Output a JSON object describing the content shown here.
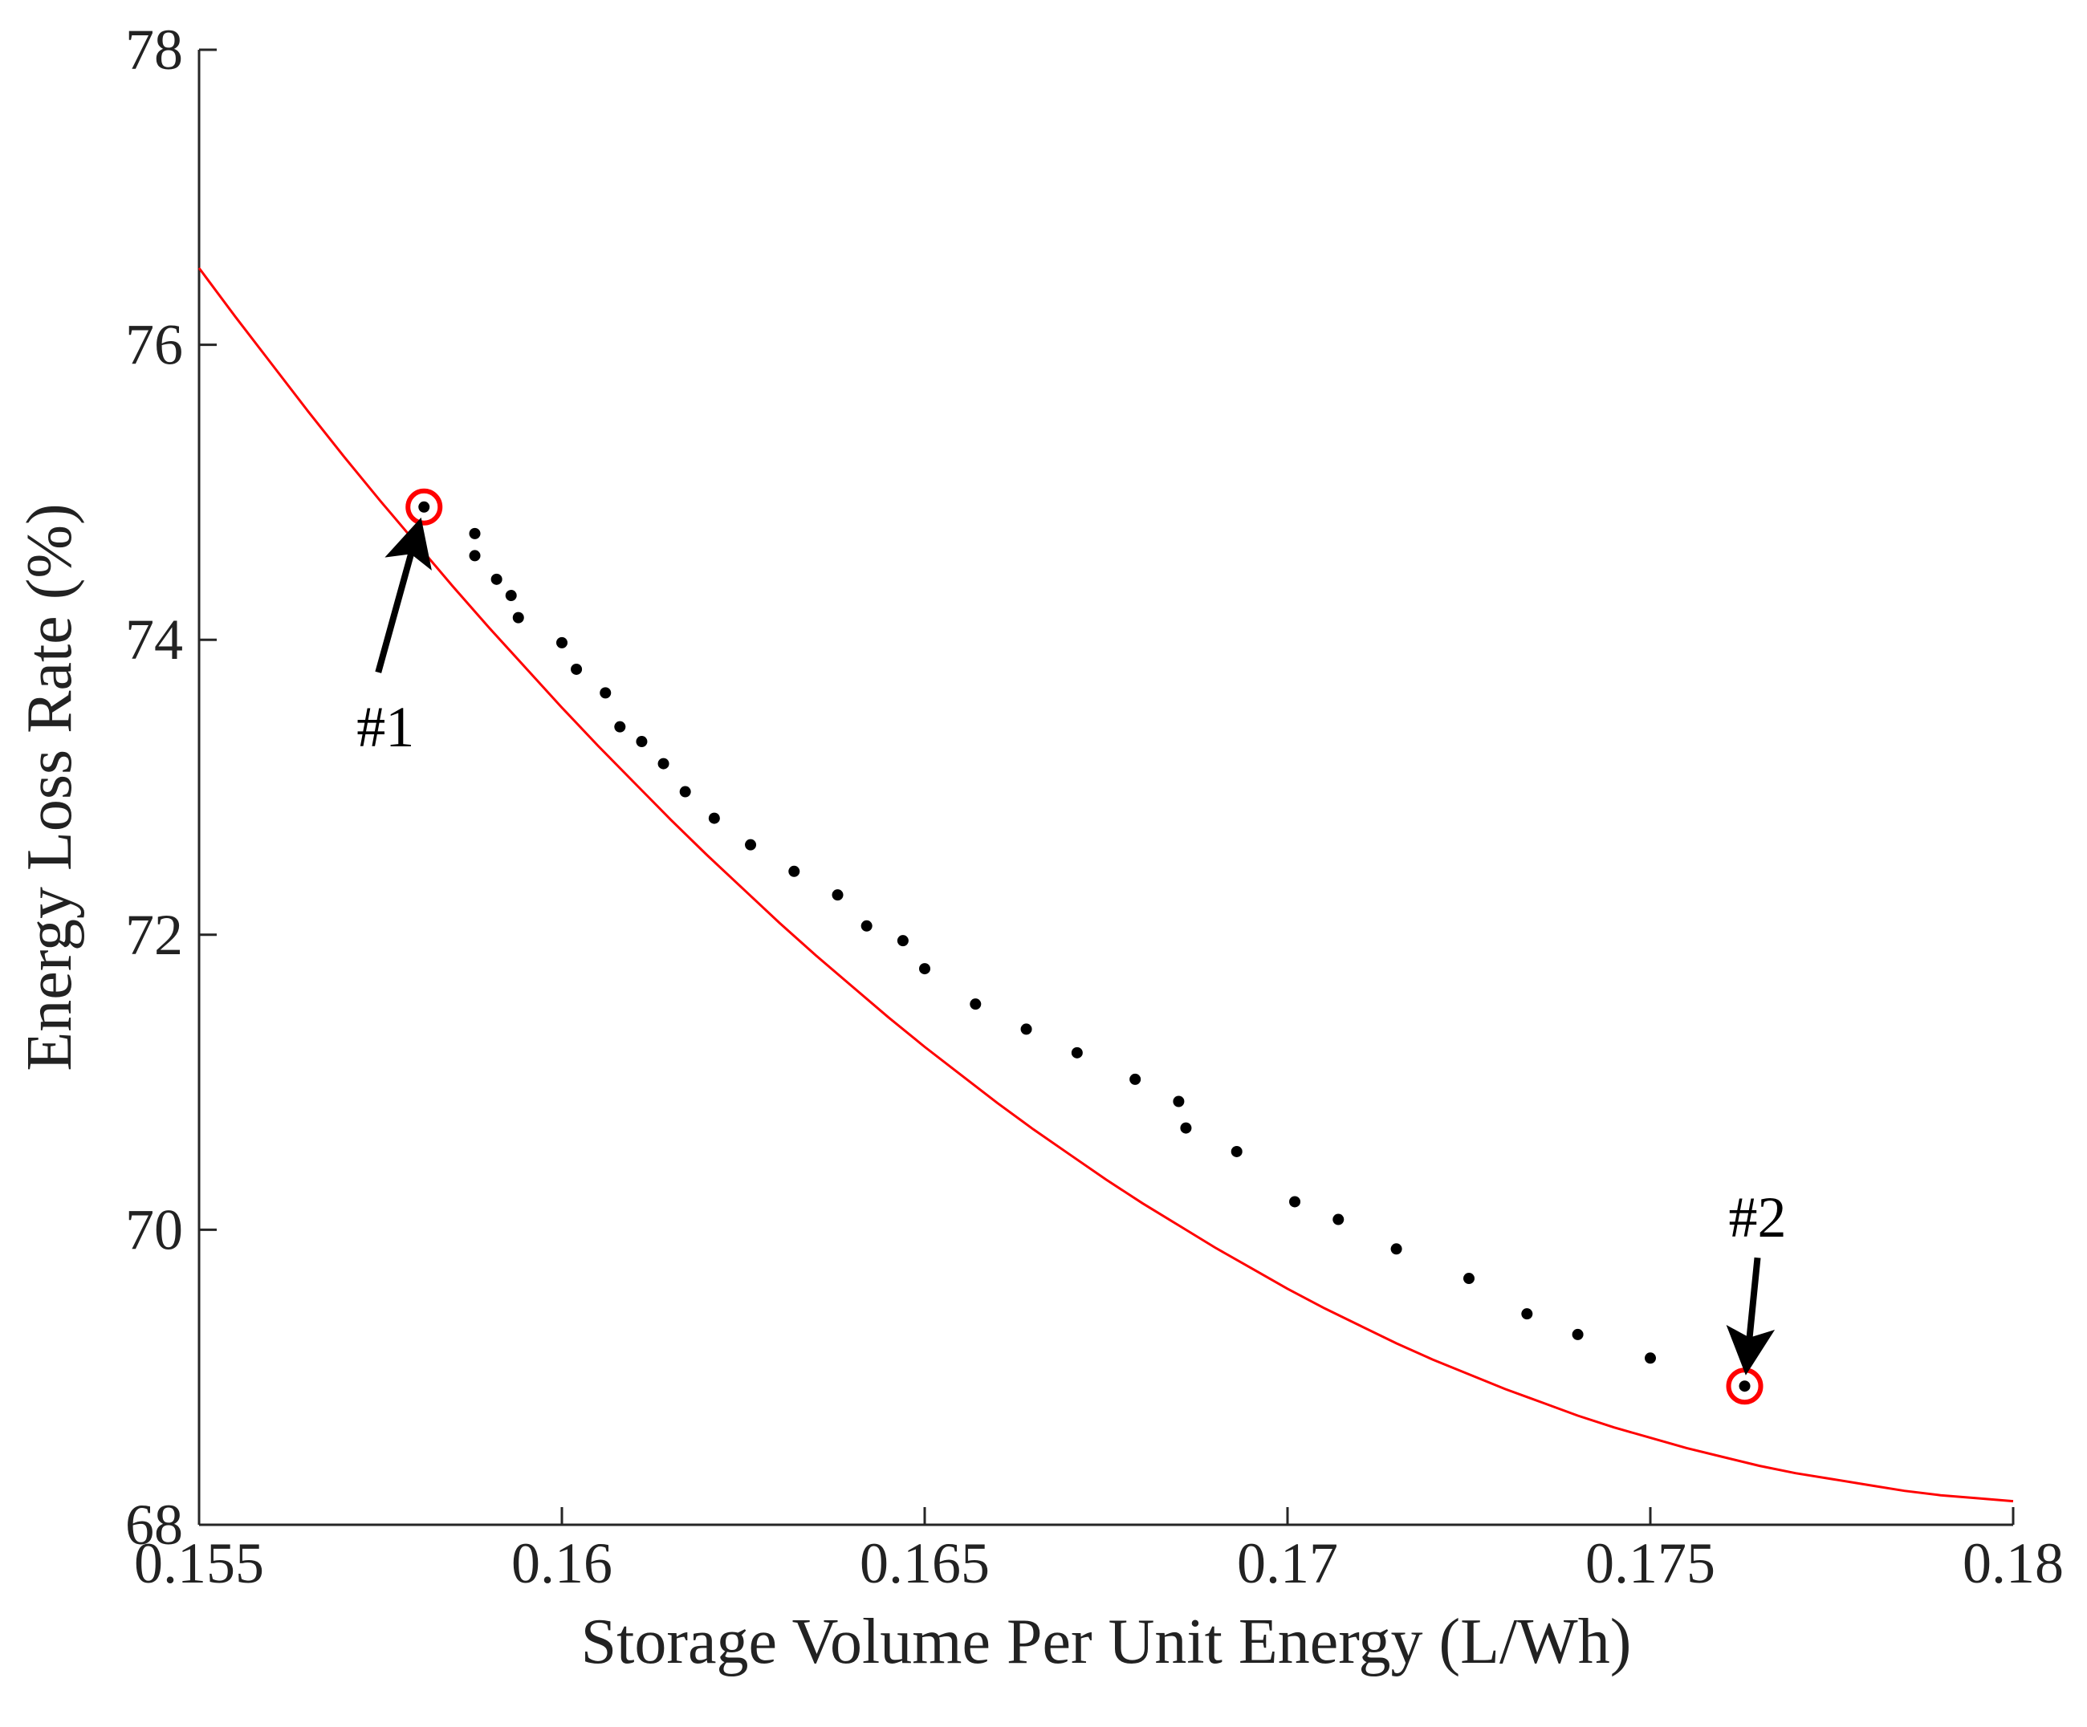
{
  "chart_data": {
    "type": "scatter",
    "title": "",
    "xlabel": "Storage Volume Per Unit Energy (L/Wh)",
    "ylabel": "Energy Loss Rate (%)",
    "xlim": [
      0.155,
      0.18
    ],
    "ylim": [
      68,
      78
    ],
    "xticks": [
      0.155,
      0.16,
      0.165,
      0.17,
      0.175,
      0.18
    ],
    "xtick_labels": [
      "0.155",
      "0.16",
      "0.165",
      "0.17",
      "0.175",
      "0.18"
    ],
    "yticks": [
      68,
      70,
      72,
      74,
      76,
      78
    ],
    "ytick_labels": [
      "68",
      "70",
      "72",
      "74",
      "76",
      "78"
    ],
    "grid": false,
    "series": [
      {
        "name": "data points",
        "kind": "scatter",
        "color": "#000000",
        "x": [
          0.1581,
          0.1588,
          0.1588,
          0.1591,
          0.1593,
          0.1594,
          0.16,
          0.1602,
          0.1606,
          0.1608,
          0.1611,
          0.1614,
          0.1617,
          0.1621,
          0.1626,
          0.1632,
          0.1638,
          0.1642,
          0.1647,
          0.165,
          0.1657,
          0.1664,
          0.1671,
          0.1679,
          0.1685,
          0.1686,
          0.1693,
          0.1701,
          0.1707,
          0.1715,
          0.1725,
          0.1733,
          0.174,
          0.175,
          0.1763
        ],
        "y": [
          74.9,
          74.72,
          74.57,
          74.41,
          74.3,
          74.15,
          73.98,
          73.8,
          73.64,
          73.41,
          73.31,
          73.16,
          72.97,
          72.79,
          72.61,
          72.43,
          72.27,
          72.06,
          71.96,
          71.77,
          71.53,
          71.36,
          71.2,
          71.02,
          70.87,
          70.69,
          70.53,
          70.19,
          70.07,
          69.87,
          69.67,
          69.43,
          69.29,
          69.13,
          68.94
        ]
      },
      {
        "name": "fitted curve",
        "kind": "line",
        "color": "#ff0000",
        "x": [
          0.155,
          0.1555,
          0.156,
          0.1565,
          0.157,
          0.1575,
          0.158,
          0.1585,
          0.159,
          0.1595,
          0.16,
          0.1605,
          0.161,
          0.1615,
          0.162,
          0.1625,
          0.163,
          0.1635,
          0.164,
          0.1645,
          0.165,
          0.1655,
          0.166,
          0.1665,
          0.167,
          0.1675,
          0.168,
          0.1685,
          0.169,
          0.1695,
          0.17,
          0.1705,
          0.171,
          0.1715,
          0.172,
          0.1725,
          0.173,
          0.1735,
          0.174,
          0.1745,
          0.175,
          0.1755,
          0.176,
          0.1765,
          0.177,
          0.1775,
          0.178,
          0.1785,
          0.179,
          0.1795,
          0.18
        ],
        "y": [
          76.52,
          76.19,
          75.87,
          75.55,
          75.24,
          74.94,
          74.65,
          74.36,
          74.08,
          73.81,
          73.54,
          73.28,
          73.03,
          72.78,
          72.54,
          72.31,
          72.08,
          71.86,
          71.65,
          71.44,
          71.24,
          71.05,
          70.86,
          70.68,
          70.51,
          70.34,
          70.18,
          70.03,
          69.88,
          69.74,
          69.6,
          69.47,
          69.35,
          69.23,
          69.12,
          69.02,
          68.92,
          68.83,
          68.74,
          68.66,
          68.59,
          68.52,
          68.46,
          68.4,
          68.35,
          68.31,
          68.27,
          68.23,
          68.2,
          68.18,
          68.16
        ]
      }
    ],
    "markers": [
      {
        "id": "1",
        "x": 0.1581,
        "y": 74.9,
        "color": "#ff0000"
      },
      {
        "id": "2",
        "x": 0.1763,
        "y": 68.94,
        "color": "#ff0000"
      }
    ],
    "annotations": [
      {
        "text": "#1",
        "target_x": 0.1581,
        "target_y": 74.9
      },
      {
        "text": "#2",
        "target_x": 0.1763,
        "target_y": 68.94
      }
    ]
  }
}
